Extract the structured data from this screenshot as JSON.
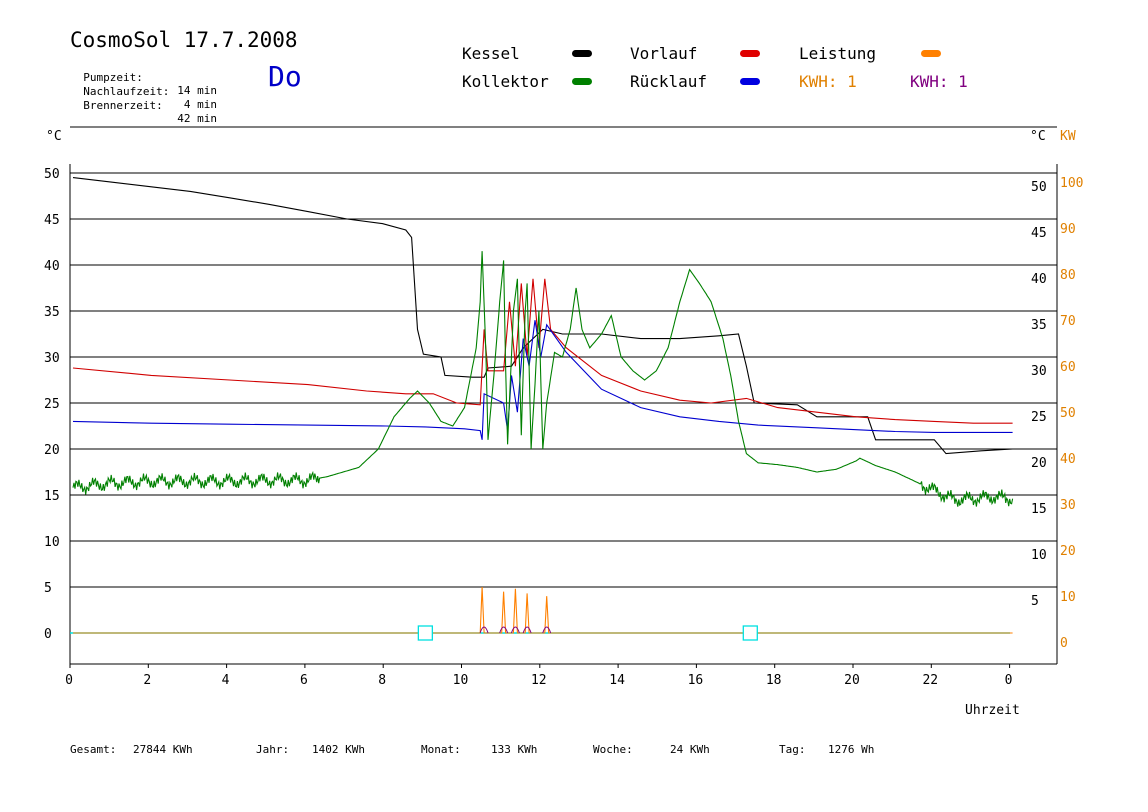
{
  "header": {
    "title": "CosmoSol 17.7.2008",
    "pump_label": "Pumpzeit:",
    "pump_value": "14 min",
    "after_label": "Nachlaufzeit:",
    "after_value": "4 min",
    "burner_label": "Brennerzeit:",
    "burner_value": "42 min",
    "weekday": "Do"
  },
  "legend": {
    "kessel": "Kessel",
    "kollektor": "Kollektor",
    "vorlauf": "Vorlauf",
    "ruecklauf": "Rücklauf",
    "leistung": "Leistung",
    "kwh_orange": "KWH: 1",
    "kwh_purple": "KWH: 1"
  },
  "colors": {
    "kessel": "#000000",
    "kollektor": "#008000",
    "vorlauf": "#d00000",
    "ruecklauf": "#0000d0",
    "leistung": "#ff8000",
    "kwh": "#800080",
    "zero_line": "#00e0e0"
  },
  "footer": {
    "gesamt_label": "Gesamt:",
    "gesamt_value": "27844 KWh",
    "jahr_label": "Jahr:",
    "jahr_value": "1402 KWh",
    "monat_label": "Monat:",
    "monat_value": "133 KWh",
    "woche_label": "Woche:",
    "woche_value": "24 KWh",
    "tag_label": "Tag:",
    "tag_value": "1276 Wh"
  },
  "chart_data": {
    "type": "line",
    "xlabel": "Uhrzeit",
    "ylabel_left": "°C",
    "ylabel_right": "°C",
    "ylabel_right2": "KW",
    "xlim": [
      0,
      24
    ],
    "ylim": [
      -3.5,
      57
    ],
    "grid": true,
    "x_ticks": [
      "0",
      "2",
      "4",
      "6",
      "8",
      "10",
      "12",
      "14",
      "16",
      "18",
      "20",
      "22",
      "0"
    ],
    "y_ticks": [
      0,
      5,
      10,
      15,
      20,
      25,
      30,
      35,
      40,
      45,
      50
    ],
    "y_ticks_right": [
      "5",
      "10",
      "15",
      "20",
      "25",
      "30",
      "35",
      "40",
      "45",
      "50"
    ],
    "y_ticks_kw": [
      "0",
      "10",
      "20",
      "30",
      "40",
      "50",
      "60",
      "70",
      "80",
      "90",
      "100"
    ],
    "series": [
      {
        "name": "Kessel",
        "color": "#000000",
        "points": [
          [
            0,
            49.5
          ],
          [
            1,
            49.0
          ],
          [
            2,
            48.5
          ],
          [
            3,
            48.0
          ],
          [
            4,
            47.3
          ],
          [
            5,
            46.6
          ],
          [
            6,
            45.8
          ],
          [
            7,
            45.0
          ],
          [
            7.9,
            44.5
          ],
          [
            8.5,
            43.8
          ],
          [
            8.65,
            43.0
          ],
          [
            8.8,
            33
          ],
          [
            8.95,
            30.3
          ],
          [
            9.4,
            30.0
          ],
          [
            9.5,
            28
          ],
          [
            10.2,
            27.8
          ],
          [
            10.5,
            27.8
          ],
          [
            10.6,
            28.8
          ],
          [
            11.2,
            29.0
          ],
          [
            11.5,
            31.0
          ],
          [
            12.0,
            33.0
          ],
          [
            12.5,
            32.5
          ],
          [
            13.5,
            32.5
          ],
          [
            14.5,
            32.0
          ],
          [
            15.5,
            32.0
          ],
          [
            16.5,
            32.3
          ],
          [
            17.0,
            32.5
          ],
          [
            17.2,
            29
          ],
          [
            17.4,
            25
          ],
          [
            18.5,
            24.8
          ],
          [
            19.0,
            23.5
          ],
          [
            20.3,
            23.5
          ],
          [
            20.5,
            21
          ],
          [
            22.0,
            21
          ],
          [
            22.3,
            19.5
          ],
          [
            23.2,
            19.8
          ],
          [
            24,
            20.0
          ]
        ]
      },
      {
        "name": "Vorlauf",
        "color": "#d00000",
        "points": [
          [
            0,
            28.8
          ],
          [
            2,
            28.0
          ],
          [
            4,
            27.5
          ],
          [
            6,
            27.0
          ],
          [
            7.5,
            26.3
          ],
          [
            8.5,
            26.0
          ],
          [
            9.2,
            26.0
          ],
          [
            9.8,
            25.0
          ],
          [
            10.4,
            24.8
          ],
          [
            10.5,
            33
          ],
          [
            10.6,
            28.5
          ],
          [
            11.0,
            28.5
          ],
          [
            11.15,
            36
          ],
          [
            11.3,
            29
          ],
          [
            11.45,
            38
          ],
          [
            11.6,
            30
          ],
          [
            11.75,
            38.5
          ],
          [
            11.9,
            31
          ],
          [
            12.05,
            38.5
          ],
          [
            12.2,
            33
          ],
          [
            12.6,
            31
          ],
          [
            13.5,
            28
          ],
          [
            14.5,
            26.3
          ],
          [
            15.5,
            25.3
          ],
          [
            16.3,
            25.0
          ],
          [
            17.2,
            25.5
          ],
          [
            18,
            24.5
          ],
          [
            19,
            24.0
          ],
          [
            20,
            23.5
          ],
          [
            21,
            23.2
          ],
          [
            22,
            23.0
          ],
          [
            23,
            22.8
          ],
          [
            24,
            22.8
          ]
        ]
      },
      {
        "name": "Rücklauf",
        "color": "#0000d0",
        "points": [
          [
            0,
            23.0
          ],
          [
            2,
            22.8
          ],
          [
            4,
            22.7
          ],
          [
            6,
            22.6
          ],
          [
            8,
            22.5
          ],
          [
            9,
            22.4
          ],
          [
            10,
            22.2
          ],
          [
            10.4,
            22.0
          ],
          [
            10.45,
            21.0
          ],
          [
            10.5,
            26
          ],
          [
            11.0,
            25
          ],
          [
            11.1,
            22
          ],
          [
            11.2,
            28
          ],
          [
            11.35,
            24
          ],
          [
            11.5,
            32
          ],
          [
            11.65,
            29
          ],
          [
            11.8,
            34
          ],
          [
            11.95,
            30
          ],
          [
            12.1,
            33.5
          ],
          [
            12.6,
            30.5
          ],
          [
            13.5,
            26.5
          ],
          [
            14.5,
            24.5
          ],
          [
            15.5,
            23.5
          ],
          [
            16.5,
            23.0
          ],
          [
            17.5,
            22.6
          ],
          [
            19,
            22.3
          ],
          [
            20,
            22.1
          ],
          [
            21,
            21.9
          ],
          [
            22,
            21.8
          ],
          [
            23,
            21.8
          ],
          [
            24,
            21.8
          ]
        ]
      },
      {
        "name": "Kollektor",
        "color": "#008000",
        "points": [
          [
            0,
            15.8
          ],
          [
            1,
            16.3
          ],
          [
            2,
            16.5
          ],
          [
            3,
            16.5
          ],
          [
            4,
            16.5
          ],
          [
            5,
            16.6
          ],
          [
            6,
            16.6
          ],
          [
            6.5,
            17.0
          ],
          [
            7.3,
            18.0
          ],
          [
            7.8,
            20.0
          ],
          [
            8.2,
            23.5
          ],
          [
            8.6,
            25.5
          ],
          [
            8.8,
            26.3
          ],
          [
            9.1,
            25.0
          ],
          [
            9.4,
            23.0
          ],
          [
            9.7,
            22.5
          ],
          [
            10.0,
            24.5
          ],
          [
            10.3,
            31.0
          ],
          [
            10.4,
            36
          ],
          [
            10.45,
            41.5
          ],
          [
            10.55,
            30
          ],
          [
            10.6,
            21.0
          ],
          [
            10.75,
            28
          ],
          [
            10.9,
            36
          ],
          [
            11.0,
            40.5
          ],
          [
            11.05,
            29
          ],
          [
            11.1,
            20.5
          ],
          [
            11.25,
            35
          ],
          [
            11.35,
            38.5
          ],
          [
            11.45,
            21.5
          ],
          [
            11.55,
            35
          ],
          [
            11.6,
            38
          ],
          [
            11.7,
            20
          ],
          [
            11.8,
            27
          ],
          [
            11.9,
            35
          ],
          [
            12.0,
            20
          ],
          [
            12.1,
            25
          ],
          [
            12.3,
            30.5
          ],
          [
            12.5,
            30
          ],
          [
            12.7,
            33
          ],
          [
            12.85,
            37.5
          ],
          [
            13.0,
            33
          ],
          [
            13.2,
            31
          ],
          [
            13.5,
            32.5
          ],
          [
            13.75,
            34.5
          ],
          [
            14.0,
            30
          ],
          [
            14.3,
            28.5
          ],
          [
            14.6,
            27.5
          ],
          [
            14.9,
            28.5
          ],
          [
            15.2,
            31
          ],
          [
            15.5,
            36
          ],
          [
            15.75,
            39.5
          ],
          [
            16.0,
            38
          ],
          [
            16.3,
            36
          ],
          [
            16.6,
            32
          ],
          [
            16.8,
            28
          ],
          [
            17.0,
            23
          ],
          [
            17.2,
            19.5
          ],
          [
            17.5,
            18.5
          ],
          [
            18.0,
            18.3
          ],
          [
            18.5,
            18.0
          ],
          [
            19.0,
            17.5
          ],
          [
            19.5,
            17.8
          ],
          [
            20.0,
            18.7
          ],
          [
            20.1,
            19.0
          ],
          [
            20.5,
            18.2
          ],
          [
            21.0,
            17.5
          ],
          [
            21.5,
            16.5
          ],
          [
            22.0,
            15.5
          ],
          [
            22.5,
            14.5
          ],
          [
            23.0,
            14.6
          ],
          [
            23.5,
            14.8
          ],
          [
            24,
            14.6
          ]
        ]
      },
      {
        "name": "Leistung",
        "color": "#ff8000",
        "points": [
          [
            0,
            0
          ],
          [
            10.4,
            0
          ],
          [
            10.45,
            5
          ],
          [
            10.5,
            0
          ],
          [
            10.95,
            0
          ],
          [
            11.0,
            4.5
          ],
          [
            11.05,
            0
          ],
          [
            11.25,
            0
          ],
          [
            11.3,
            4.8
          ],
          [
            11.35,
            0
          ],
          [
            11.55,
            0
          ],
          [
            11.6,
            4.3
          ],
          [
            11.65,
            0
          ],
          [
            12.05,
            0
          ],
          [
            12.1,
            4.0
          ],
          [
            12.15,
            0
          ],
          [
            24,
            0
          ]
        ]
      }
    ],
    "valve_markers_x": [
      9.0,
      17.3
    ]
  }
}
